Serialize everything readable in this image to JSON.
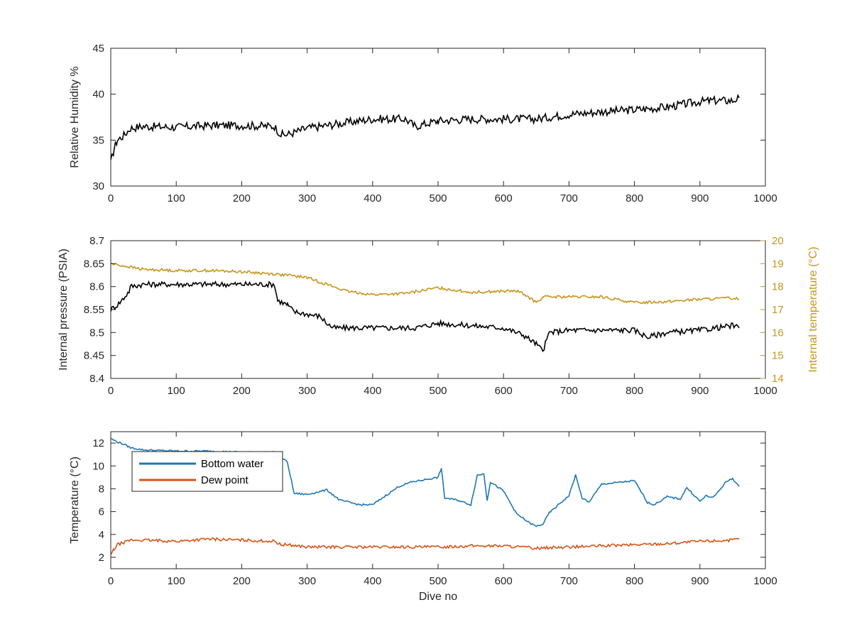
{
  "colors": {
    "black": "#000000",
    "gold": "#C8951E",
    "blue": "#1F77B4",
    "orange": "#D95319",
    "axis": "#262626"
  },
  "chart_data": [
    {
      "type": "line",
      "xlabel": "",
      "ylabel": "Relative Humidity %",
      "xlim": [
        0,
        1000
      ],
      "ylim": [
        30,
        45
      ],
      "xticks": [
        0,
        100,
        200,
        300,
        400,
        500,
        600,
        700,
        800,
        900,
        1000
      ],
      "yticks": [
        30,
        35,
        40,
        45
      ],
      "grid": false,
      "series": [
        {
          "color": "#000000",
          "x": [
            0,
            5,
            10,
            20,
            30,
            50,
            100,
            150,
            200,
            250,
            260,
            270,
            300,
            350,
            400,
            450,
            465,
            500,
            550,
            600,
            650,
            700,
            750,
            800,
            850,
            900,
            920,
            950,
            960
          ],
          "y": [
            32.5,
            34,
            35,
            35.5,
            36.3,
            36.5,
            36.4,
            36.6,
            36.6,
            36.5,
            35.6,
            35.6,
            36.3,
            36.8,
            37.3,
            37.3,
            36.5,
            37.1,
            37.3,
            37.3,
            37.3,
            37.8,
            38.1,
            38.3,
            38.6,
            39.2,
            39.3,
            39.3,
            39.6
          ]
        }
      ]
    },
    {
      "type": "line",
      "xlabel": "",
      "ylabel": "Internal pressure (PSIA)",
      "y2label": "Internal temperature (°C)",
      "xlim": [
        0,
        1000
      ],
      "ylim": [
        8.4,
        8.7
      ],
      "y2lim": [
        14,
        20
      ],
      "xticks": [
        0,
        100,
        200,
        300,
        400,
        500,
        600,
        700,
        800,
        900,
        1000
      ],
      "yticks": [
        8.4,
        8.45,
        8.5,
        8.55,
        8.6,
        8.65,
        8.7
      ],
      "y2ticks": [
        14,
        15,
        16,
        17,
        18,
        19,
        20
      ],
      "grid": false,
      "series": [
        {
          "axis": "left",
          "color": "#000000",
          "x": [
            0,
            10,
            20,
            28,
            30,
            50,
            100,
            150,
            200,
            250,
            255,
            270,
            280,
            300,
            320,
            330,
            340,
            360,
            400,
            450,
            465,
            500,
            550,
            600,
            630,
            650,
            660,
            670,
            700,
            750,
            800,
            820,
            850,
            900,
            950,
            960
          ],
          "y": [
            8.55,
            8.56,
            8.575,
            8.59,
            8.6,
            8.605,
            8.605,
            8.605,
            8.605,
            8.605,
            8.57,
            8.56,
            8.545,
            8.54,
            8.535,
            8.52,
            8.51,
            8.51,
            8.51,
            8.51,
            8.51,
            8.52,
            8.515,
            8.51,
            8.495,
            8.475,
            8.46,
            8.5,
            8.505,
            8.505,
            8.505,
            8.49,
            8.5,
            8.505,
            8.515,
            8.51
          ]
        },
        {
          "axis": "right",
          "color": "#C8951E",
          "x": [
            0,
            20,
            50,
            100,
            150,
            200,
            250,
            300,
            350,
            360,
            400,
            450,
            500,
            550,
            600,
            620,
            630,
            640,
            650,
            660,
            700,
            750,
            800,
            850,
            900,
            950,
            960
          ],
          "y": [
            19.0,
            18.9,
            18.75,
            18.7,
            18.7,
            18.65,
            18.55,
            18.4,
            17.9,
            17.8,
            17.65,
            17.7,
            17.95,
            17.75,
            17.8,
            17.8,
            17.7,
            17.5,
            17.3,
            17.55,
            17.55,
            17.55,
            17.3,
            17.35,
            17.45,
            17.5,
            17.45
          ]
        }
      ]
    },
    {
      "type": "line",
      "xlabel": "Dive no",
      "ylabel": "Temperature (°C)",
      "xlim": [
        0,
        1000
      ],
      "ylim": [
        1,
        13
      ],
      "xticks": [
        0,
        100,
        200,
        300,
        400,
        500,
        600,
        700,
        800,
        900,
        1000
      ],
      "yticks": [
        2,
        4,
        6,
        8,
        10,
        12
      ],
      "grid": false,
      "legend": "upper-left",
      "series": [
        {
          "name": "Bottom water",
          "color": "#1F77B4",
          "x": [
            0,
            10,
            20,
            30,
            50,
            100,
            150,
            200,
            250,
            260,
            270,
            280,
            300,
            330,
            350,
            380,
            400,
            420,
            440,
            460,
            480,
            500,
            505,
            510,
            530,
            550,
            560,
            570,
            575,
            580,
            600,
            620,
            640,
            650,
            660,
            670,
            680,
            700,
            710,
            720,
            730,
            750,
            800,
            820,
            830,
            850,
            870,
            880,
            900,
            910,
            920,
            940,
            950,
            960
          ],
          "y": [
            12.4,
            12.1,
            11.9,
            11.6,
            11.4,
            11.3,
            11.3,
            11.2,
            11.2,
            10.8,
            10.3,
            7.6,
            7.5,
            7.9,
            7.0,
            6.6,
            6.6,
            7.4,
            8.2,
            8.6,
            8.8,
            9.0,
            9.8,
            7.2,
            7.0,
            6.6,
            9.2,
            9.3,
            7.0,
            8.6,
            7.8,
            5.8,
            5.0,
            4.7,
            4.9,
            5.9,
            6.4,
            7.4,
            9.2,
            7.2,
            6.8,
            8.4,
            8.7,
            6.8,
            6.6,
            7.3,
            7.1,
            8.1,
            6.9,
            7.4,
            7.2,
            8.6,
            8.9,
            8.2
          ]
        },
        {
          "name": "Dew point",
          "color": "#D95319",
          "x": [
            0,
            5,
            10,
            20,
            30,
            50,
            100,
            150,
            200,
            250,
            260,
            270,
            300,
            350,
            400,
            450,
            500,
            550,
            600,
            650,
            700,
            750,
            800,
            850,
            900,
            950,
            960
          ],
          "y": [
            2.2,
            2.7,
            3.1,
            3.3,
            3.5,
            3.5,
            3.4,
            3.6,
            3.5,
            3.4,
            3.1,
            3.1,
            2.9,
            2.9,
            2.9,
            2.9,
            2.9,
            3.0,
            3.0,
            2.8,
            2.9,
            3.0,
            3.1,
            3.2,
            3.4,
            3.5,
            3.6
          ]
        }
      ]
    }
  ]
}
